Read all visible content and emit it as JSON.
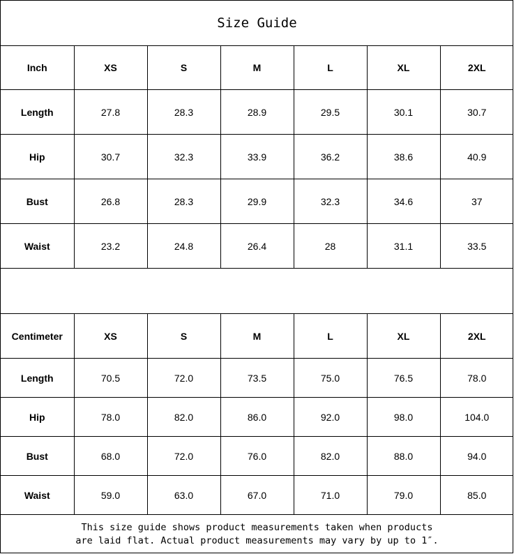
{
  "title": "Size Guide",
  "sizes": [
    "XS",
    "S",
    "M",
    "L",
    "XL",
    "2XL"
  ],
  "inch": {
    "unit_label": "Inch",
    "rows": [
      {
        "label": "Length",
        "values": [
          "27.8",
          "28.3",
          "28.9",
          "29.5",
          "30.1",
          "30.7"
        ]
      },
      {
        "label": "Hip",
        "values": [
          "30.7",
          "32.3",
          "33.9",
          "36.2",
          "38.6",
          "40.9"
        ]
      },
      {
        "label": "Bust",
        "values": [
          "26.8",
          "28.3",
          "29.9",
          "32.3",
          "34.6",
          "37"
        ]
      },
      {
        "label": "Waist",
        "values": [
          "23.2",
          "24.8",
          "26.4",
          "28",
          "31.1",
          "33.5"
        ]
      }
    ]
  },
  "centimeter": {
    "unit_label": "Centimeter",
    "rows": [
      {
        "label": "Length",
        "values": [
          "70.5",
          "72.0",
          "73.5",
          "75.0",
          "76.5",
          "78.0"
        ]
      },
      {
        "label": "Hip",
        "values": [
          "78.0",
          "82.0",
          "86.0",
          "92.0",
          "98.0",
          "104.0"
        ]
      },
      {
        "label": "Bust",
        "values": [
          "68.0",
          "72.0",
          "76.0",
          "82.0",
          "88.0",
          "94.0"
        ]
      },
      {
        "label": "Waist",
        "values": [
          "59.0",
          "63.0",
          "67.0",
          "71.0",
          "79.0",
          "85.0"
        ]
      }
    ]
  },
  "note": {
    "line1": "This size guide shows product measurements taken when products",
    "line2": "are laid flat. Actual product measurements may vary by up to 1″."
  }
}
